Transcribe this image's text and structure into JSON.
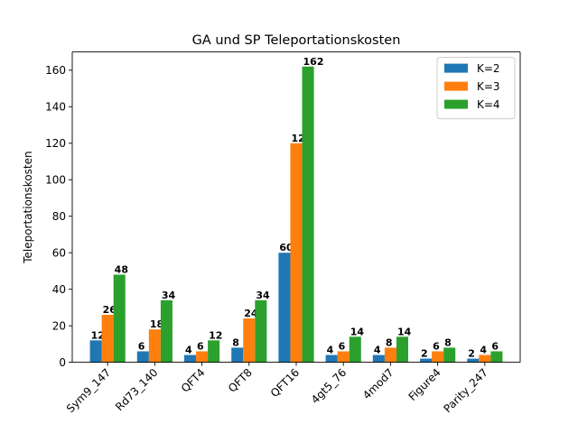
{
  "chart_data": {
    "type": "bar",
    "title": "GA und SP Teleportationskosten",
    "xlabel": "",
    "ylabel": "Teleportationskosten",
    "categories": [
      "Sym9_147",
      "Rd73_140",
      "QFT4",
      "QFT8",
      "QFT16",
      "4gt5_76",
      "4mod7",
      "Figure4",
      "Parity_247"
    ],
    "series": [
      {
        "name": "K=2",
        "color": "#1f77b4",
        "values": [
          12,
          6,
          4,
          8,
          60,
          4,
          4,
          2,
          2
        ]
      },
      {
        "name": "K=3",
        "color": "#ff7f0e",
        "values": [
          26,
          18,
          6,
          24,
          120,
          6,
          8,
          6,
          4
        ]
      },
      {
        "name": "K=4",
        "color": "#2ca02c",
        "values": [
          48,
          34,
          12,
          34,
          162,
          14,
          14,
          8,
          6
        ]
      }
    ],
    "ylim": [
      0,
      170
    ],
    "yticks": [
      0,
      20,
      40,
      60,
      80,
      100,
      120,
      140,
      160
    ],
    "legend_position": "top-right",
    "grid": false
  }
}
